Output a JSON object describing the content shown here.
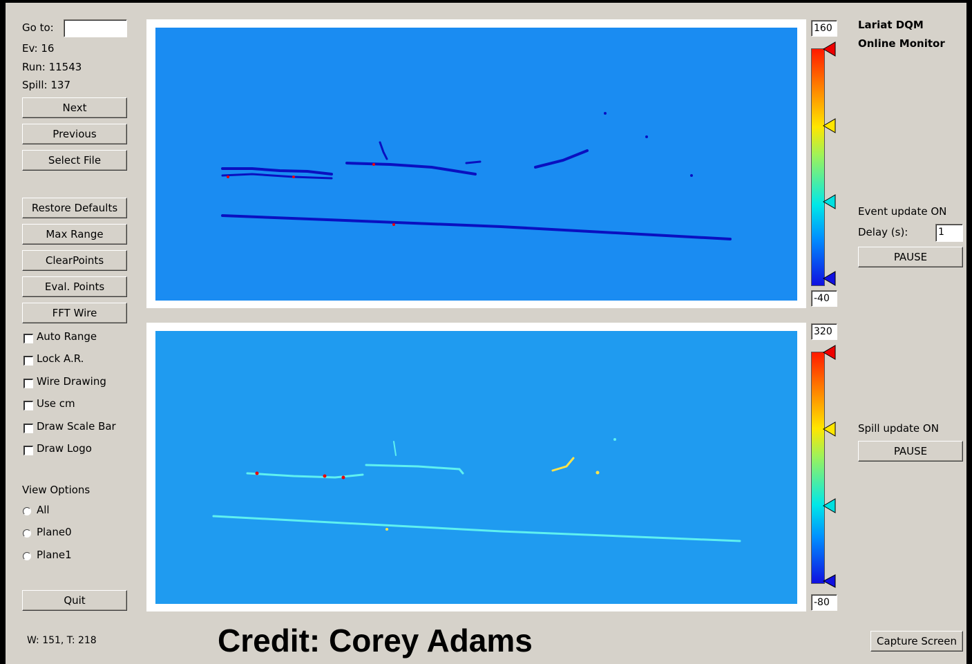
{
  "navigation": {
    "goto_label": "Go to:",
    "event": "Ev: 16",
    "run": "Run: 11543",
    "spill": "Spill: 137"
  },
  "buttons": [
    "Next",
    "Previous",
    "Select File",
    "Restore Defaults",
    "Max Range",
    "ClearPoints",
    "Eval. Points",
    "FFT Wire"
  ],
  "checkboxes": [
    "Auto Range",
    "Lock A.R.",
    "Wire Drawing",
    "Use cm",
    "Draw Scale Bar",
    "Draw Logo"
  ],
  "view_options": {
    "title": "View Options",
    "options": [
      "All",
      "Plane0",
      "Plane1"
    ]
  },
  "quit": "Quit",
  "status": "W: 151, T: 218",
  "displays": [
    {
      "scale_max": "160",
      "scale_min": "-40"
    },
    {
      "scale_max": "320",
      "scale_min": "-80"
    }
  ],
  "header": {
    "line1": "Lariat DQM",
    "line2": "Online Monitor"
  },
  "event_update": {
    "status": "Event update ON",
    "delay_label": "Delay (s):",
    "delay_value": "1",
    "button": "PAUSE"
  },
  "spill_update": {
    "status": "Spill update ON",
    "button": "PAUSE"
  },
  "capture": "Capture Screen",
  "credit": "Credit: Corey Adams"
}
